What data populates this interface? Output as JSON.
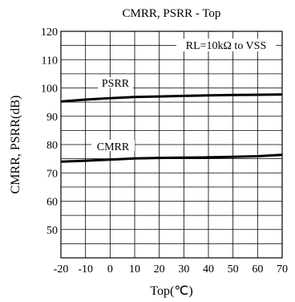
{
  "chart_data": {
    "type": "line",
    "title": "CMRR, PSRR - Top",
    "xlabel": "Top(℃)",
    "ylabel": "CMRR, PSRR(dB)",
    "xlim": [
      -20,
      70
    ],
    "ylim": [
      40,
      120
    ],
    "x_ticks": [
      -20,
      -10,
      0,
      10,
      20,
      30,
      40,
      50,
      60,
      70
    ],
    "y_ticks": [
      50,
      60,
      70,
      80,
      90,
      100,
      110,
      120
    ],
    "x_minor_step": 10,
    "y_minor_step": 5,
    "grid": true,
    "condition": "RL=10kΩ to VSS",
    "series": [
      {
        "name": "PSRR",
        "color": "#000000",
        "x": [
          -20,
          -10,
          0,
          10,
          20,
          30,
          40,
          50,
          60,
          70
        ],
        "y": [
          95.2,
          95.9,
          96.4,
          96.8,
          97.0,
          97.2,
          97.4,
          97.5,
          97.6,
          97.7
        ]
      },
      {
        "name": "CMRR",
        "color": "#000000",
        "x": [
          -20,
          -10,
          0,
          10,
          20,
          30,
          40,
          50,
          60,
          70
        ],
        "y": [
          74.0,
          74.3,
          74.7,
          75.1,
          75.3,
          75.4,
          75.5,
          75.7,
          75.9,
          76.4
        ]
      }
    ]
  }
}
